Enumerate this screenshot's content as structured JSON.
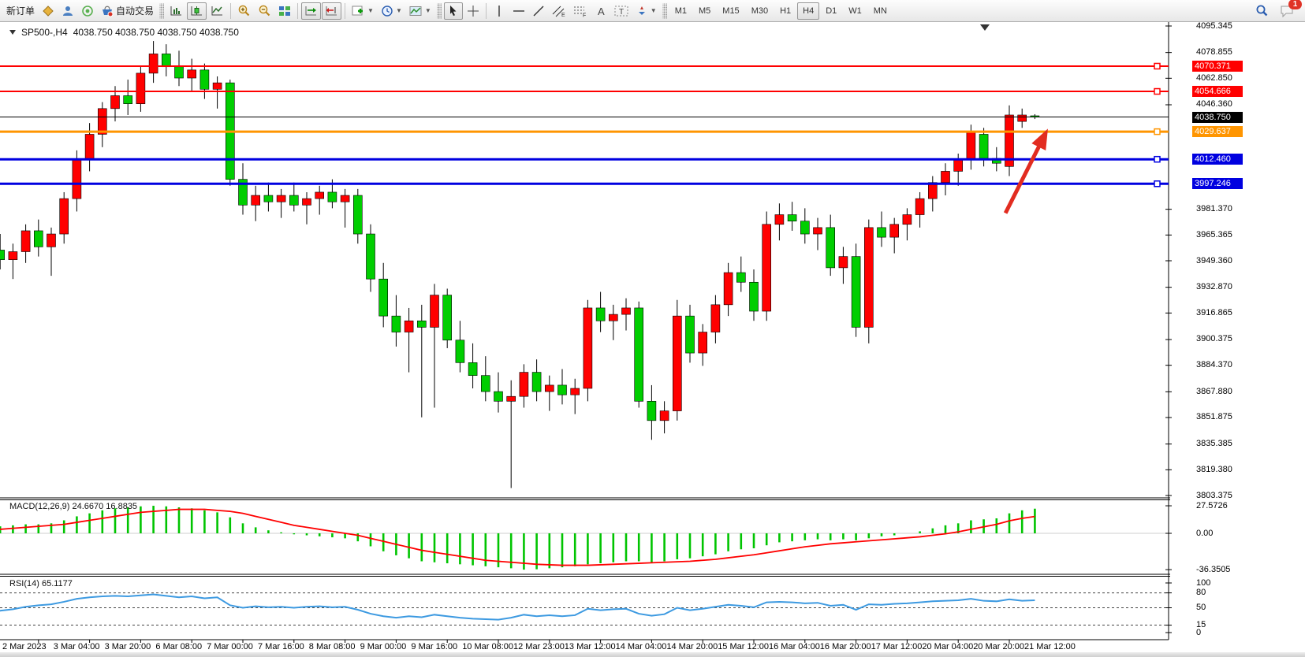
{
  "toolbar": {
    "new_order": "新订单",
    "autotrade": "自动交易",
    "timeframes": [
      "M1",
      "M5",
      "M15",
      "M30",
      "H1",
      "H4",
      "D1",
      "W1",
      "MN"
    ],
    "active_timeframe": "H4",
    "notification_badge": "1"
  },
  "header": {
    "symbol": "SP500-,H4",
    "ohlc": "4038.750 4038.750 4038.750 4038.750"
  },
  "price_axis": {
    "ticks": [
      4095.345,
      4078.855,
      4062.85,
      4046.36,
      3981.37,
      3965.365,
      3949.36,
      3932.87,
      3916.865,
      3900.375,
      3884.37,
      3867.88,
      3851.875,
      3835.385,
      3819.38,
      3803.375
    ]
  },
  "macd_panel": {
    "label": "MACD(12,26,9) 24.6670 16.8835",
    "axis_ticks": [
      "27.5726",
      "0.00",
      "-36.3505"
    ],
    "axis_values": [
      27.5726,
      0,
      -36.3505
    ]
  },
  "rsi_panel": {
    "label": "RSI(14) 65.1177",
    "axis_ticks": [
      "100",
      "80",
      "50",
      "15",
      "0"
    ],
    "axis_values": [
      100,
      80,
      50,
      15,
      0
    ]
  },
  "chart_data": {
    "type": "candlestick",
    "symbol": "SP500-",
    "timeframe": "H4",
    "current_ohlc": [
      4038.75,
      4038.75,
      4038.75,
      4038.75
    ],
    "ylim": [
      3803.375,
      4095.345
    ],
    "bars_per_label": 4,
    "x_labels": [
      "2 Mar 2023",
      "3 Mar 04:00",
      "3 Mar 20:00",
      "6 Mar 08:00",
      "7 Mar 00:00",
      "7 Mar 16:00",
      "8 Mar 08:00",
      "9 Mar 00:00",
      "9 Mar 16:00",
      "10 Mar 08:00",
      "12 Mar 23:00",
      "13 Mar 12:00",
      "14 Mar 04:00",
      "14 Mar 20:00",
      "15 Mar 12:00",
      "16 Mar 04:00",
      "16 Mar 20:00",
      "17 Mar 12:00",
      "20 Mar 04:00",
      "20 Mar 20:00",
      "21 Mar 12:00"
    ],
    "bull_color": "#FF0000",
    "bear_color": "#00CE00",
    "wick_color": "#000000",
    "candles": [
      [
        3936,
        3962,
        3930,
        3956
      ],
      [
        3956,
        3966,
        3944,
        3950
      ],
      [
        3950,
        3960,
        3938,
        3955
      ],
      [
        3955,
        3972,
        3948,
        3968
      ],
      [
        3968,
        3975,
        3952,
        3958
      ],
      [
        3958,
        3970,
        3940,
        3966
      ],
      [
        3966,
        3992,
        3960,
        3988
      ],
      [
        3988,
        4018,
        3980,
        4012
      ],
      [
        4012,
        4035,
        4005,
        4028
      ],
      [
        4028,
        4048,
        4020,
        4044
      ],
      [
        4044,
        4058,
        4036,
        4052
      ],
      [
        4052,
        4062,
        4040,
        4047
      ],
      [
        4047,
        4070,
        4042,
        4066
      ],
      [
        4066,
        4086,
        4060,
        4078
      ],
      [
        4078,
        4084,
        4064,
        4070
      ],
      [
        4070,
        4080,
        4058,
        4063
      ],
      [
        4063,
        4075,
        4055,
        4068
      ],
      [
        4068,
        4072,
        4050,
        4056
      ],
      [
        4056,
        4064,
        4044,
        4060
      ],
      [
        4060,
        4062,
        3996,
        4000
      ],
      [
        4000,
        4010,
        3978,
        3984
      ],
      [
        3984,
        3996,
        3974,
        3990
      ],
      [
        3990,
        3998,
        3980,
        3986
      ],
      [
        3986,
        3994,
        3976,
        3990
      ],
      [
        3990,
        3998,
        3980,
        3984
      ],
      [
        3984,
        3992,
        3972,
        3988
      ],
      [
        3988,
        3996,
        3978,
        3992
      ],
      [
        3992,
        4000,
        3982,
        3986
      ],
      [
        3986,
        3994,
        3970,
        3990
      ],
      [
        3990,
        3994,
        3960,
        3966
      ],
      [
        3966,
        3972,
        3930,
        3938
      ],
      [
        3938,
        3948,
        3908,
        3915
      ],
      [
        3915,
        3928,
        3896,
        3905
      ],
      [
        3905,
        3920,
        3880,
        3912
      ],
      [
        3912,
        3922,
        3852,
        3908
      ],
      [
        3908,
        3935,
        3858,
        3928
      ],
      [
        3928,
        3932,
        3895,
        3900
      ],
      [
        3900,
        3912,
        3880,
        3886
      ],
      [
        3886,
        3898,
        3870,
        3878
      ],
      [
        3878,
        3890,
        3862,
        3868
      ],
      [
        3868,
        3880,
        3855,
        3862
      ],
      [
        3862,
        3875,
        3808,
        3865
      ],
      [
        3865,
        3885,
        3858,
        3880
      ],
      [
        3880,
        3888,
        3862,
        3868
      ],
      [
        3868,
        3878,
        3856,
        3872
      ],
      [
        3872,
        3882,
        3860,
        3866
      ],
      [
        3866,
        3876,
        3854,
        3870
      ],
      [
        3870,
        3925,
        3862,
        3920
      ],
      [
        3920,
        3930,
        3905,
        3912
      ],
      [
        3912,
        3922,
        3900,
        3916
      ],
      [
        3916,
        3926,
        3906,
        3920
      ],
      [
        3920,
        3924,
        3858,
        3862
      ],
      [
        3862,
        3872,
        3838,
        3850
      ],
      [
        3850,
        3862,
        3842,
        3856
      ],
      [
        3856,
        3925,
        3850,
        3915
      ],
      [
        3915,
        3922,
        3886,
        3892
      ],
      [
        3892,
        3910,
        3884,
        3905
      ],
      [
        3905,
        3928,
        3898,
        3922
      ],
      [
        3922,
        3948,
        3915,
        3942
      ],
      [
        3942,
        3952,
        3930,
        3936
      ],
      [
        3936,
        3944,
        3912,
        3918
      ],
      [
        3918,
        3980,
        3912,
        3972
      ],
      [
        3972,
        3985,
        3962,
        3978
      ],
      [
        3978,
        3986,
        3968,
        3974
      ],
      [
        3974,
        3982,
        3960,
        3966
      ],
      [
        3966,
        3976,
        3956,
        3970
      ],
      [
        3970,
        3978,
        3940,
        3945
      ],
      [
        3945,
        3958,
        3935,
        3952
      ],
      [
        3952,
        3960,
        3902,
        3908
      ],
      [
        3908,
        3975,
        3898,
        3970
      ],
      [
        3970,
        3980,
        3958,
        3964
      ],
      [
        3964,
        3976,
        3954,
        3972
      ],
      [
        3972,
        3982,
        3962,
        3978
      ],
      [
        3978,
        3992,
        3970,
        3988
      ],
      [
        3988,
        4002,
        3980,
        3998
      ],
      [
        3998,
        4010,
        3990,
        4005
      ],
      [
        4005,
        4016,
        3996,
        4012
      ],
      [
        4012,
        4034,
        4006,
        4030
      ],
      [
        4028,
        4032,
        4008,
        4013
      ],
      [
        4013,
        4020,
        4005,
        4010
      ],
      [
        4008,
        4046,
        4002,
        4040
      ],
      [
        4036,
        4044,
        4032,
        4040
      ],
      [
        4039.5,
        4040.5,
        4037.5,
        4038.75
      ]
    ],
    "price_lines": [
      {
        "price": 4070.371,
        "label": "4070.371",
        "color": "#FF0000",
        "width": 2,
        "current": false
      },
      {
        "price": 4054.666,
        "label": "4054.666",
        "color": "#FF0000",
        "width": 2,
        "current": false
      },
      {
        "price": 4038.75,
        "label": "4038.750",
        "color": "#000000",
        "width": 1,
        "current": true
      },
      {
        "price": 4029.637,
        "label": "4029.637",
        "color": "#FF9500",
        "width": 3,
        "current": false
      },
      {
        "price": 4012.46,
        "label": "4012.460",
        "color": "#0000E0",
        "width": 3,
        "current": false
      },
      {
        "price": 3997.246,
        "label": "3997.246",
        "color": "#0000E0",
        "width": 3,
        "current": false
      }
    ],
    "annotations": [
      {
        "type": "arrow",
        "direction": "up",
        "color": "#E22C20",
        "from": {
          "bar": 79.7,
          "price": 3979
        },
        "to": {
          "bar": 82.8,
          "price": 4028
        }
      }
    ],
    "indicators": {
      "macd": {
        "params": [
          12,
          26,
          9
        ],
        "current_main": 24.667,
        "current_signal": 16.8835,
        "ylim": [
          -36.3505,
          27.5726
        ],
        "hist_color": "#00C400",
        "signal_color": "#FF0000",
        "histogram": [
          6,
          7,
          8,
          9,
          9,
          10,
          13,
          17,
          20,
          23,
          25,
          26,
          27,
          27.57,
          27,
          26,
          25,
          23,
          21,
          16,
          10,
          6,
          3,
          1,
          -1,
          -2,
          -3,
          -4,
          -5,
          -8,
          -13,
          -18,
          -22,
          -25,
          -28,
          -29,
          -30,
          -31,
          -32,
          -33,
          -34,
          -35,
          -36.35,
          -36,
          -35,
          -34,
          -33,
          -31,
          -30,
          -29,
          -28,
          -28,
          -29,
          -28,
          -26,
          -25,
          -23,
          -21,
          -18,
          -16,
          -15,
          -12,
          -9,
          -8,
          -7,
          -6,
          -7,
          -6,
          -7,
          -5,
          -3,
          -2,
          0,
          2,
          5,
          8,
          10,
          13,
          14,
          15,
          20,
          23,
          24.667
        ],
        "signal": [
          3,
          4,
          5,
          6,
          7,
          8,
          9,
          11,
          13,
          15,
          17,
          19,
          21,
          22,
          23,
          24,
          24,
          24,
          23,
          22,
          20,
          17,
          14,
          11,
          8,
          6,
          4,
          2,
          0,
          -2,
          -5,
          -8,
          -11,
          -14,
          -17,
          -19,
          -21,
          -23,
          -25,
          -27,
          -28,
          -29,
          -30,
          -31,
          -31.5,
          -32,
          -32,
          -32,
          -31.5,
          -31,
          -30.5,
          -30,
          -29.5,
          -29,
          -28.5,
          -28,
          -27,
          -26,
          -24.5,
          -23,
          -21.5,
          -19.5,
          -17.5,
          -15.5,
          -13.5,
          -12,
          -10.5,
          -9.5,
          -8.5,
          -7.5,
          -6.5,
          -5.5,
          -4.5,
          -3.5,
          -2,
          -0.5,
          1.5,
          4,
          6.5,
          9,
          12.5,
          15,
          16.8835
        ]
      },
      "rsi": {
        "period": 14,
        "current": 65.1177,
        "levels": [
          80,
          50,
          15
        ],
        "ylim": [
          0,
          100
        ],
        "line_color": "#3D9AE1",
        "values": [
          40,
          44,
          47,
          52,
          55,
          57,
          62,
          68,
          71,
          73,
          74,
          73,
          75,
          77,
          74,
          71,
          73,
          69,
          71,
          55,
          50,
          53,
          51,
          52,
          50,
          52,
          53,
          51,
          52,
          46,
          38,
          33,
          30,
          33,
          31,
          36,
          33,
          30,
          28,
          27,
          26,
          30,
          36,
          33,
          35,
          33,
          35,
          48,
          45,
          47,
          48,
          38,
          34,
          37,
          50,
          45,
          48,
          52,
          56,
          54,
          51,
          61,
          62,
          61,
          59,
          60,
          54,
          56,
          46,
          57,
          56,
          58,
          59,
          61,
          63,
          64,
          65,
          68,
          64,
          63,
          67,
          64,
          65.1177
        ]
      }
    }
  }
}
